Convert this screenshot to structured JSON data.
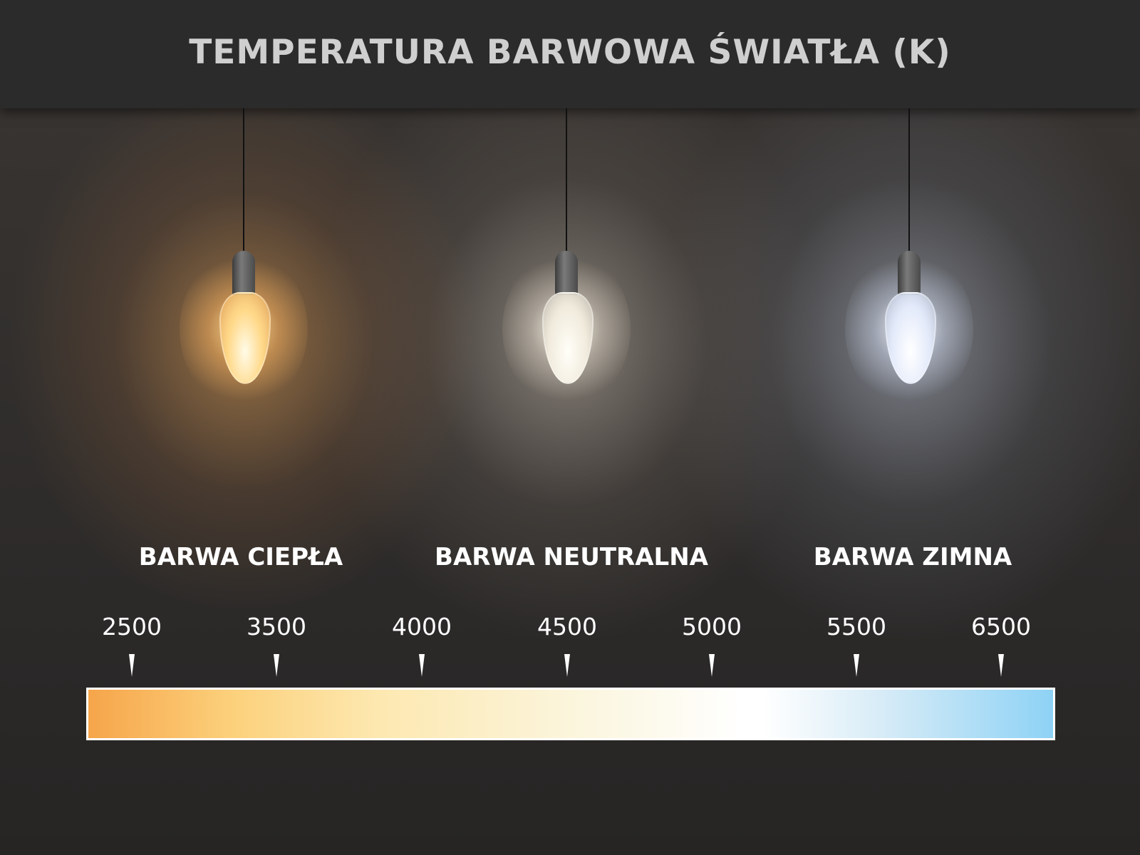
{
  "title": "TEMPERATURA BARWOWA ŚWIATŁA (K)",
  "categories": [
    {
      "label": "BARWA CIEPŁA",
      "glow_color": "#f4b060"
    },
    {
      "label": "BARWA NEUTRALNA",
      "glow_color": "#f5ecdc"
    },
    {
      "label": "BARWA ZIMNA",
      "glow_color": "#dfe8ff"
    }
  ],
  "scale": {
    "ticks": [
      "2500",
      "3500",
      "4000",
      "4500",
      "5000",
      "5500",
      "6500"
    ],
    "gradient_colors": [
      "#f6a54a",
      "#fcd17c",
      "#fbf5dc",
      "#ffffff",
      "#8ed2f5"
    ]
  }
}
